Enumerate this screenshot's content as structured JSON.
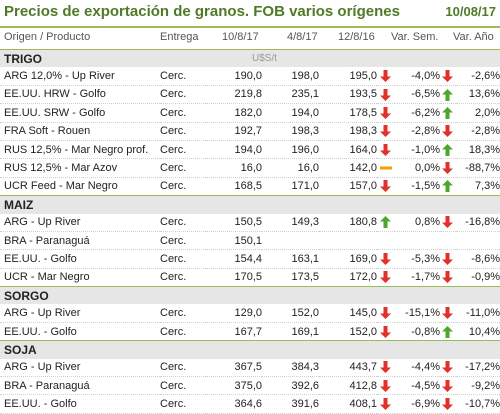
{
  "header": {
    "title": "Precios de exportación de granos. FOB varios orígenes",
    "date": "10/08/17"
  },
  "columns": {
    "origin": "Origen / Producto",
    "delivery": "Entrega",
    "d1": "10/8/17",
    "d2": "4/8/17",
    "d3": "12/8/16",
    "var_week": "Var. Sem.",
    "var_year": "Var. Año"
  },
  "colors": {
    "up": "#4ea72a",
    "down": "#e0312b",
    "flat": "#f2a100",
    "accent": "#9bbb59"
  },
  "sections": [
    {
      "name": "TRIGO",
      "unit": "U$S/t",
      "rows": [
        {
          "name": "ARG 12,0% - Up River",
          "delivery": "Cerc.",
          "d1": "190,0",
          "d2": "198,0",
          "d3": "195,0",
          "i1": "down",
          "w": "-4,0%",
          "i2": "down",
          "y": "-2,6%"
        },
        {
          "name": "EE.UU. HRW - Golfo",
          "delivery": "Cerc.",
          "d1": "219,8",
          "d2": "235,1",
          "d3": "193,5",
          "i1": "down",
          "w": "-6,5%",
          "i2": "up",
          "y": "13,6%"
        },
        {
          "name": "EE.UU. SRW - Golfo",
          "delivery": "Cerc.",
          "d1": "182,0",
          "d2": "194,0",
          "d3": "178,5",
          "i1": "down",
          "w": "-6,2%",
          "i2": "up",
          "y": "2,0%"
        },
        {
          "name": "FRA Soft - Rouen",
          "delivery": "Cerc.",
          "d1": "192,7",
          "d2": "198,3",
          "d3": "198,3",
          "i1": "down",
          "w": "-2,8%",
          "i2": "down",
          "y": "-2,8%"
        },
        {
          "name": "RUS 12,5% - Mar Negro prof.",
          "delivery": "Cerc.",
          "d1": "194,0",
          "d2": "196,0",
          "d3": "164,0",
          "i1": "down",
          "w": "-1,0%",
          "i2": "up",
          "y": "18,3%"
        },
        {
          "name": "RUS 12,5% - Mar Azov",
          "delivery": "Cerc.",
          "d1": "16,0",
          "d2": "16,0",
          "d3": "142,0",
          "i1": "flat",
          "w": "0,0%",
          "i2": "down",
          "y": "-88,7%"
        },
        {
          "name": "UCR Feed - Mar Negro",
          "delivery": "Cerc.",
          "d1": "168,5",
          "d2": "171,0",
          "d3": "157,0",
          "i1": "down",
          "w": "-1,5%",
          "i2": "up",
          "y": "7,3%"
        }
      ]
    },
    {
      "name": "MAIZ",
      "unit": "",
      "rows": [
        {
          "name": "ARG - Up River",
          "delivery": "Cerc.",
          "d1": "150,5",
          "d2": "149,3",
          "d3": "180,8",
          "i1": "up",
          "w": "0,8%",
          "i2": "down",
          "y": "-16,8%"
        },
        {
          "name": "BRA - Paranaguá",
          "delivery": "Cerc.",
          "d1": "150,1",
          "d2": "",
          "d3": "",
          "i1": "",
          "w": "",
          "i2": "",
          "y": ""
        },
        {
          "name": "EE.UU. - Golfo",
          "delivery": "Cerc.",
          "d1": "154,4",
          "d2": "163,1",
          "d3": "169,0",
          "i1": "down",
          "w": "-5,3%",
          "i2": "down",
          "y": "-8,6%"
        },
        {
          "name": "UCR - Mar Negro",
          "delivery": "Cerc.",
          "d1": "170,5",
          "d2": "173,5",
          "d3": "172,0",
          "i1": "down",
          "w": "-1,7%",
          "i2": "down",
          "y": "-0,9%"
        }
      ]
    },
    {
      "name": "SORGO",
      "unit": "",
      "rows": [
        {
          "name": "ARG - Up River",
          "delivery": "Cerc.",
          "d1": "129,0",
          "d2": "152,0",
          "d3": "145,0",
          "i1": "down",
          "w": "-15,1%",
          "i2": "down",
          "y": "-11,0%"
        },
        {
          "name": "EE.UU. - Golfo",
          "delivery": "Cerc.",
          "d1": "167,7",
          "d2": "169,1",
          "d3": "152,0",
          "i1": "down",
          "w": "-0,8%",
          "i2": "up",
          "y": "10,4%"
        }
      ]
    },
    {
      "name": "SOJA",
      "unit": "",
      "rows": [
        {
          "name": "ARG - Up River",
          "delivery": "Cerc.",
          "d1": "367,5",
          "d2": "384,3",
          "d3": "443,7",
          "i1": "down",
          "w": "-4,4%",
          "i2": "down",
          "y": "-17,2%"
        },
        {
          "name": "BRA - Paranaguá",
          "delivery": "Cerc.",
          "d1": "375,0",
          "d2": "392,6",
          "d3": "412,8",
          "i1": "down",
          "w": "-4,5%",
          "i2": "down",
          "y": "-9,2%"
        },
        {
          "name": "EE.UU. - Golfo",
          "delivery": "Cerc.",
          "d1": "364,6",
          "d2": "391,6",
          "d3": "408,1",
          "i1": "down",
          "w": "-6,9%",
          "i2": "down",
          "y": "-10,7%"
        }
      ]
    }
  ]
}
